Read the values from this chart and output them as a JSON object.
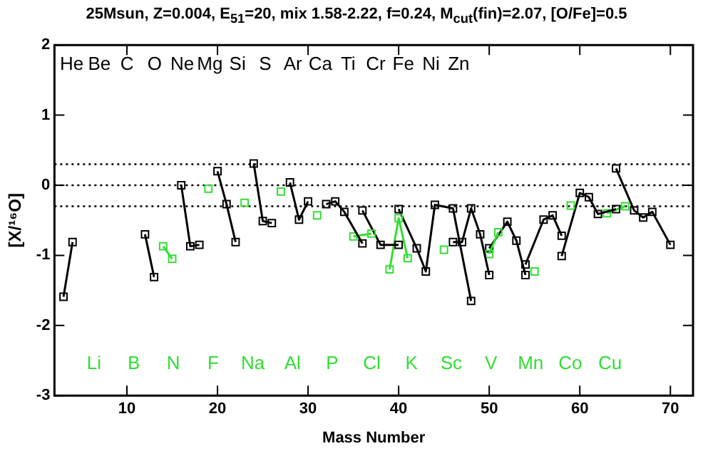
{
  "chart_data": {
    "type": "line",
    "title": "25Msun, Z=0.004, E$_{51}$=20, mix 1.58-2.22, f=0.24, M$_{cut}$(fin)=2.07, [O/Fe]=0.5",
    "xlabel": "Mass Number",
    "ylabel": "[X/¹⁶O]",
    "xlim": [
      2,
      72.5
    ],
    "xticks": [
      10,
      20,
      30,
      40,
      50,
      60,
      70
    ],
    "ylim": [
      -3,
      2
    ],
    "yticks": [
      -3,
      -2,
      -1,
      0,
      1,
      2
    ],
    "grid": false,
    "legend": false,
    "marker": "square",
    "line_style": "solid",
    "ref_lines": [
      {
        "axis": "y",
        "value": 0.3,
        "line_style": "dotted"
      },
      {
        "axis": "y",
        "value": 0,
        "line_style": "dotted"
      },
      {
        "axis": "y",
        "value": -0.3,
        "line_style": "dotted"
      }
    ],
    "series": [
      {
        "color": "#000000",
        "x": [
          3,
          4
        ],
        "values": [
          -1.59,
          -0.81
        ]
      },
      {
        "color": "#000000",
        "x": [
          12,
          13
        ],
        "values": [
          -0.7,
          -1.31
        ]
      },
      {
        "color": "#33dd33",
        "x": [
          14,
          15
        ],
        "values": [
          -0.87,
          -1.05
        ]
      },
      {
        "color": "#000000",
        "x": [
          16,
          17,
          18
        ],
        "values": [
          0.0,
          -0.87,
          -0.85
        ]
      },
      {
        "color": "#33dd33",
        "x": [
          19
        ],
        "values": [
          -0.05
        ]
      },
      {
        "color": "#000000",
        "x": [
          20,
          21,
          22
        ],
        "values": [
          0.2,
          -0.27,
          -0.81
        ]
      },
      {
        "color": "#33dd33",
        "x": [
          23
        ],
        "values": [
          -0.25
        ]
      },
      {
        "color": "#000000",
        "x": [
          24,
          25,
          26
        ],
        "values": [
          0.31,
          -0.51,
          -0.54
        ]
      },
      {
        "color": "#33dd33",
        "x": [
          27
        ],
        "values": [
          -0.09
        ]
      },
      {
        "color": "#000000",
        "x": [
          28,
          29,
          30
        ],
        "values": [
          0.04,
          -0.49,
          -0.23
        ]
      },
      {
        "color": "#33dd33",
        "x": [
          31
        ],
        "values": [
          -0.43
        ]
      },
      {
        "color": "#000000",
        "x": [
          32,
          33,
          34,
          36
        ],
        "values": [
          -0.27,
          -0.23,
          -0.38,
          -0.83
        ]
      },
      {
        "color": "#33dd33",
        "x": [
          35,
          37
        ],
        "values": [
          -0.73,
          -0.69
        ]
      },
      {
        "color": "#000000",
        "x": [
          36,
          38,
          40
        ],
        "values": [
          -0.36,
          -0.85,
          -0.85
        ]
      },
      {
        "color": "#33dd33",
        "x": [
          39,
          40,
          41
        ],
        "values": [
          -1.2,
          -0.47,
          -1.04
        ]
      },
      {
        "color": "#000000",
        "x": [
          40,
          42,
          43,
          44,
          46,
          48
        ],
        "values": [
          -0.34,
          -0.9,
          -1.23,
          -0.28,
          -0.33,
          -1.65
        ]
      },
      {
        "color": "#33dd33",
        "x": [
          45
        ],
        "values": [
          -0.92
        ]
      },
      {
        "color": "#000000",
        "x": [
          46,
          47,
          48,
          49,
          50
        ],
        "values": [
          -0.81,
          -0.81,
          -0.33,
          -0.7,
          -1.28
        ]
      },
      {
        "color": "#33dd33",
        "x": [
          50,
          51
        ],
        "values": [
          -0.98,
          -0.67
        ]
      },
      {
        "color": "#000000",
        "x": [
          50,
          52,
          53,
          54
        ],
        "values": [
          -0.9,
          -0.52,
          -0.79,
          -1.28
        ]
      },
      {
        "color": "#33dd33",
        "x": [
          55
        ],
        "values": [
          -1.23
        ]
      },
      {
        "color": "#000000",
        "x": [
          54,
          56,
          57,
          58
        ],
        "values": [
          -1.13,
          -0.49,
          -0.43,
          -0.72
        ]
      },
      {
        "color": "#33dd33",
        "x": [
          59
        ],
        "values": [
          -0.29
        ]
      },
      {
        "color": "#000000",
        "x": [
          58,
          60,
          61,
          62,
          64
        ],
        "values": [
          -1.01,
          -0.11,
          -0.17,
          -0.41,
          -0.34
        ]
      },
      {
        "color": "#33dd33",
        "x": [
          63,
          65
        ],
        "values": [
          -0.4,
          -0.3
        ]
      },
      {
        "color": "#000000",
        "x": [
          64,
          66,
          67,
          68,
          70
        ],
        "values": [
          0.24,
          -0.36,
          -0.46,
          -0.38,
          -0.85
        ]
      }
    ],
    "annotations": [
      "He",
      "Li",
      "Be",
      "B",
      "C",
      "N",
      "O",
      "F",
      "Ne",
      "Na",
      "Mg",
      "Al",
      "Si",
      "P",
      "S",
      "Cl",
      "Ar",
      "K",
      "Ca",
      "Sc",
      "Ti",
      "V",
      "Cr",
      "Mn",
      "Fe",
      "Co",
      "Ni",
      "Cu",
      "Zn"
    ]
  }
}
